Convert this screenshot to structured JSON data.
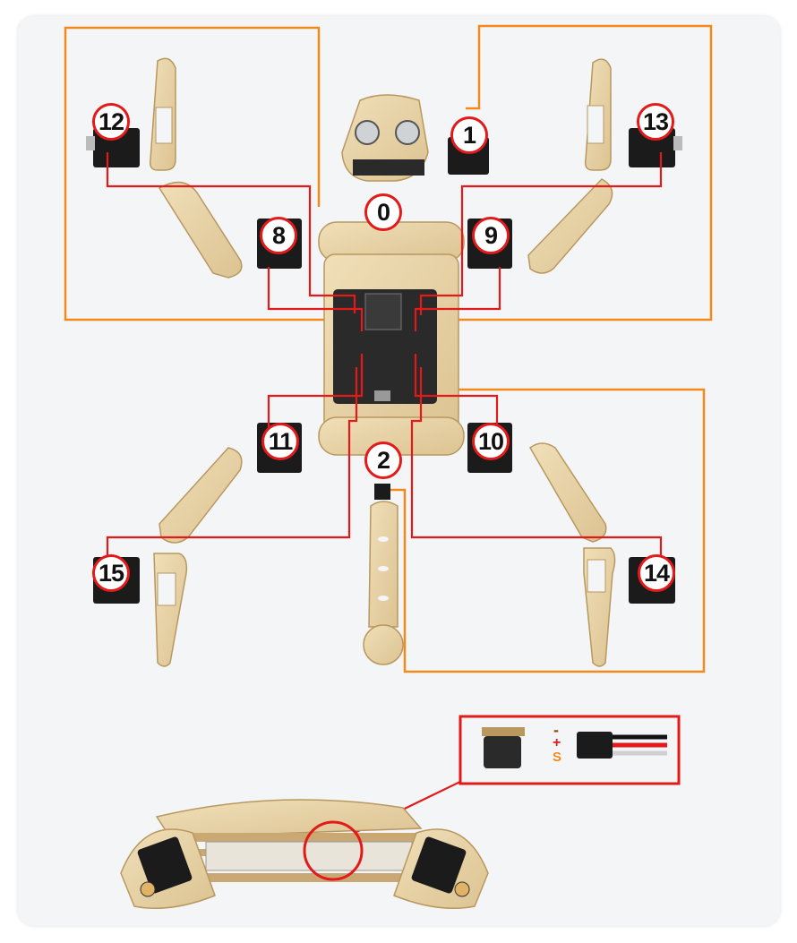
{
  "badges": [
    "0",
    "1",
    "2",
    "8",
    "9",
    "10",
    "11",
    "12",
    "13",
    "14",
    "15"
  ],
  "connector": {
    "minus": "-",
    "plus": "+",
    "signal": "S"
  },
  "colors": {
    "wire_red": "#e21a1a",
    "outline_orange": "#f08a1c",
    "wood": "#e8d3a8",
    "wood_dark": "#c9a873",
    "servo": "#1b1b1b",
    "board": "#2a2a2a"
  }
}
